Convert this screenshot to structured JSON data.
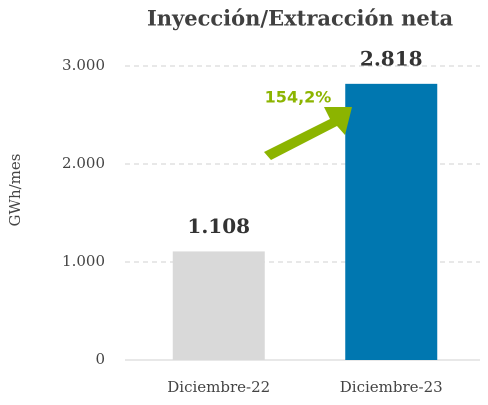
{
  "chart_data": {
    "type": "bar",
    "title": "Inyección/Extracción neta",
    "y_label": "GWh/mes",
    "categories": [
      "Diciembre-22",
      "Diciembre-23"
    ],
    "values": [
      1108,
      2818
    ],
    "value_labels": [
      "1.108",
      "2.818"
    ],
    "colors": [
      "#d9d9d9",
      "#0077b0"
    ],
    "ylim": [
      0,
      3000
    ],
    "yticks": [
      0,
      {
        "value": 1000,
        "label": "1.000"
      },
      {
        "value": 2000,
        "label": "2.000"
      },
      {
        "value": 3000,
        "label": "3.000"
      }
    ],
    "grid": true,
    "annotation": "154,2%"
  }
}
